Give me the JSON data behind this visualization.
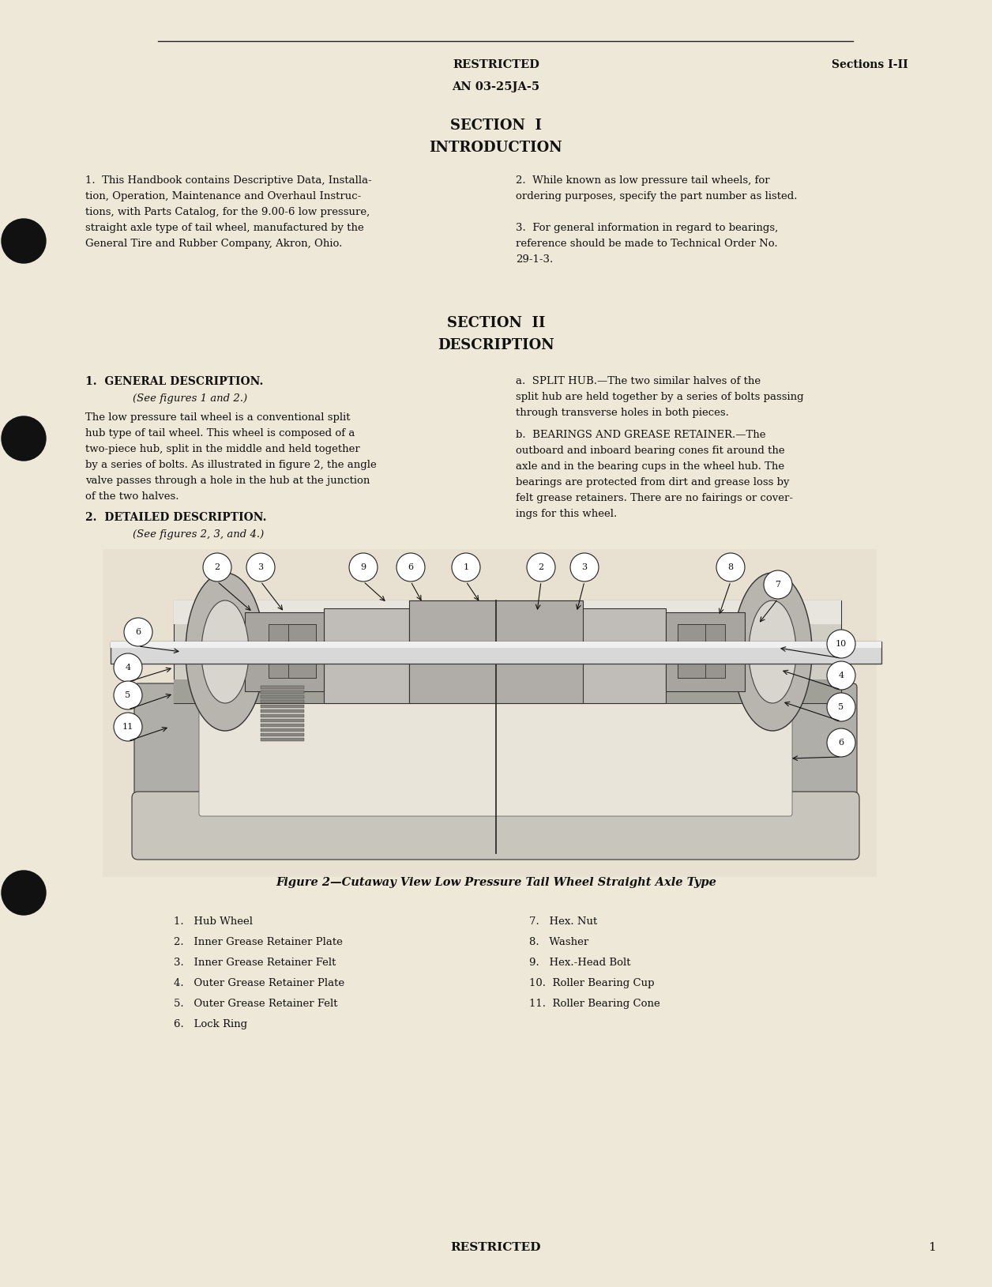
{
  "bg_color": "#ede8d8",
  "text_color": "#111111",
  "header_restricted": "RESTRICTED",
  "header_an": "AN 03-25JA-5",
  "header_sections": "Sections I-II",
  "section1_title": "SECTION  I",
  "section1_sub": "INTRODUCTION",
  "para1_left": [
    "1.  This Handbook contains Descriptive Data, Installa-",
    "tion, Operation, Maintenance and Overhaul Instruc-",
    "tions, with Parts Catalog, for the 9.00-6 low pressure,",
    "straight axle type of tail wheel, manufactured by the",
    "General Tire and Rubber Company, Akron, Ohio."
  ],
  "para1_right": [
    "2.  While known as low pressure tail wheels, for",
    "ordering purposes, specify the part number as listed.",
    "3.  For general information in regard to bearings,",
    "reference should be made to Technical Order No.",
    "29-1-3."
  ],
  "section2_title": "SECTION  II",
  "section2_sub": "DESCRIPTION",
  "gen_desc_title": "1.  GENERAL DESCRIPTION.",
  "gen_desc_italic": "(See figures 1 and 2.)",
  "gen_desc_left": [
    "The low pressure tail wheel is a conventional split",
    "hub type of tail wheel. This wheel is composed of a",
    "two-piece hub, split in the middle and held together",
    "by a series of bolts. As illustrated in figure 2, the angle",
    "valve passes through a hole in the hub at the junction",
    "of the two halves."
  ],
  "split_hub_title": "a.  SPLIT HUB.—The two similar halves of the",
  "split_hub_text": [
    "split hub are held together by a series of bolts passing",
    "through transverse holes in both pieces."
  ],
  "bearings_title": "b.  BEARINGS AND GREASE RETAINER.—The",
  "bearings_text": [
    "outboard and inboard bearing cones fit around the",
    "axle and in the bearing cups in the wheel hub. The",
    "bearings are protected from dirt and grease loss by",
    "felt grease retainers. There are no fairings or cover-",
    "ings for this wheel."
  ],
  "detailed_desc_title": "2.  DETAILED DESCRIPTION.",
  "detailed_desc_italic": "(See figures 2, 3, and 4.)",
  "figure_caption": "Figure 2—Cutaway View Low Pressure Tail Wheel Straight Axle Type",
  "parts_left": [
    "1.   Hub Wheel",
    "2.   Inner Grease Retainer Plate",
    "3.   Inner Grease Retainer Felt",
    "4.   Outer Grease Retainer Plate",
    "5.   Outer Grease Retainer Felt",
    "6.   Lock Ring"
  ],
  "parts_right": [
    "7.   Hex. Nut",
    "8.   Washer",
    "9.   Hex.-Head Bolt",
    "10.  Roller Bearing Cup",
    "11.  Roller Bearing Cone"
  ],
  "footer_restricted": "RESTRICTED",
  "footer_page": "1"
}
